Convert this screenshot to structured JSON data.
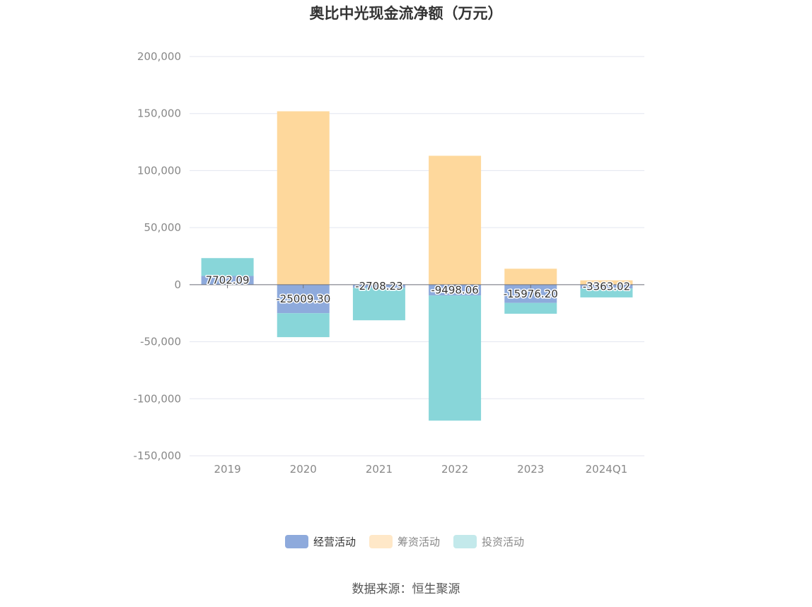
{
  "chart_data": {
    "type": "bar",
    "stacked": true,
    "title": "奥比中光现金流净额（万元）",
    "categories": [
      "2019",
      "2020",
      "2021",
      "2022",
      "2023",
      "2024Q1"
    ],
    "y_ticks": [
      "200,000",
      "150,000",
      "100,000",
      "50,000",
      "0",
      "-50,000",
      "-100,000",
      "-150,000"
    ],
    "ylim": [
      -150000,
      200000
    ],
    "grid": true,
    "legend_position": "bottom",
    "series": [
      {
        "name": "经营活动",
        "color": "#8eaadc",
        "values": [
          7702.09,
          -25009.3,
          -2708.23,
          -9498.06,
          -15976.2,
          -3363.02
        ],
        "labels": [
          "7702.09",
          "-25009.30",
          "-2708.23",
          "-9498.06",
          "-15976.20",
          "-3363.02"
        ]
      },
      {
        "name": "筹资活动",
        "color": "#fed89c",
        "values": [
          0,
          152000,
          0,
          113000,
          14000,
          3800
        ]
      },
      {
        "name": "投资活动",
        "color": "#88d6d9",
        "values": [
          15600,
          -21000,
          -28500,
          -109700,
          -9500,
          -7800
        ]
      }
    ],
    "source": "数据来源：恒生聚源"
  }
}
